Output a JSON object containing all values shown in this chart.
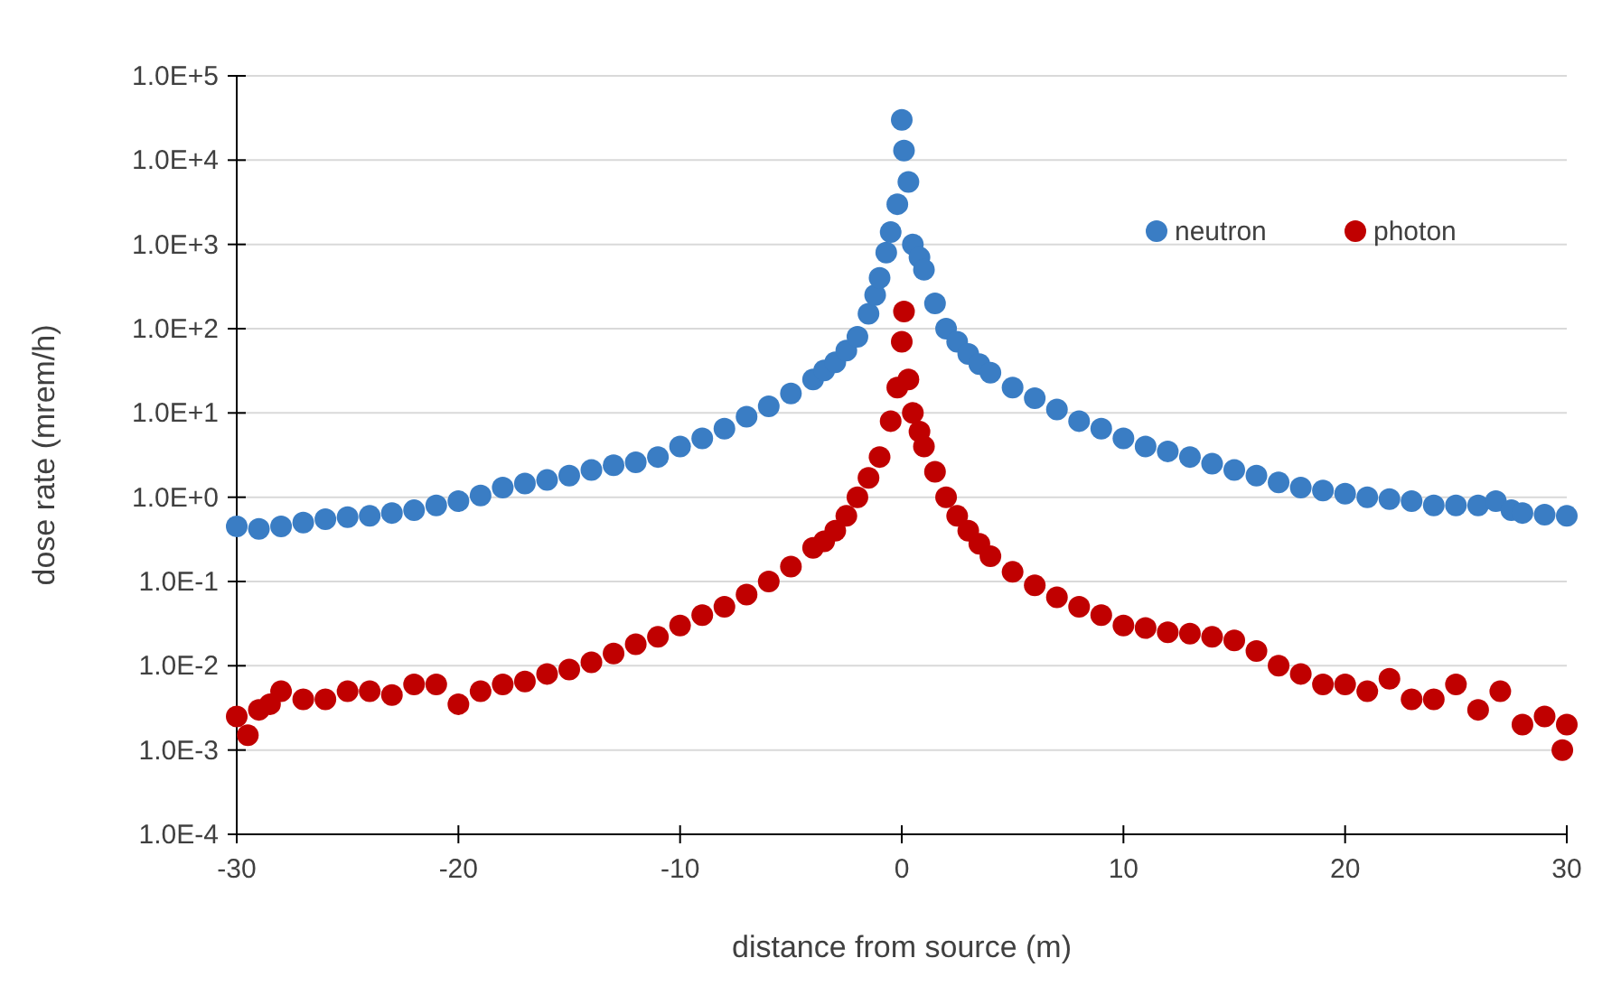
{
  "chart_data": {
    "type": "scatter",
    "xlabel": "distance from source (m)",
    "ylabel": "dose rate (mrem/h)",
    "log": "y",
    "grid": "y",
    "legend": "top right",
    "marker": "circle",
    "xlim": [
      -30,
      30
    ],
    "xticks": [
      -30,
      -20,
      -10,
      0,
      10,
      20,
      30
    ],
    "ylim": [
      0.0001,
      100000
    ],
    "yticks": [
      {
        "value": 0.0001,
        "label": "1.0E-4"
      },
      {
        "value": 0.001,
        "label": "1.0E-3"
      },
      {
        "value": 0.01,
        "label": "1.0E-2"
      },
      {
        "value": 0.1,
        "label": "1.0E-1"
      },
      {
        "value": 1,
        "label": "1.0E+0"
      },
      {
        "value": 10,
        "label": "1.0E+1"
      },
      {
        "value": 100,
        "label": "1.0E+2"
      },
      {
        "value": 1000,
        "label": "1.0E+3"
      },
      {
        "value": 10000,
        "label": "1.0E+4"
      },
      {
        "value": 100000,
        "label": "1.0E+5"
      }
    ],
    "series": [
      {
        "name": "neutron",
        "color": "#3a7dc4",
        "x": [
          -30,
          -29,
          -28,
          -27,
          -26,
          -25,
          -24,
          -23,
          -22,
          -21,
          -20,
          -19,
          -18,
          -17,
          -16,
          -15,
          -14,
          -13,
          -12,
          -11,
          -10,
          -9,
          -8,
          -7,
          -6,
          -5,
          -4,
          -3.5,
          -3,
          -2.5,
          -2,
          -1.5,
          -1.2,
          -1,
          -0.7,
          -0.5,
          -0.2,
          0,
          0.1,
          0.3,
          0.5,
          0.8,
          1,
          1.5,
          2,
          2.5,
          3,
          3.5,
          4,
          5,
          6,
          7,
          8,
          9,
          10,
          11,
          12,
          13,
          14,
          15,
          16,
          17,
          18,
          19,
          20,
          21,
          22,
          23,
          24,
          25,
          26,
          26.8,
          27.5,
          28,
          29,
          30
        ],
        "values": [
          0.45,
          0.42,
          0.45,
          0.5,
          0.55,
          0.58,
          0.6,
          0.65,
          0.7,
          0.8,
          0.9,
          1.05,
          1.3,
          1.45,
          1.6,
          1.8,
          2.1,
          2.4,
          2.6,
          3,
          4,
          5,
          6.5,
          9,
          12,
          17,
          25,
          32,
          40,
          55,
          80,
          150,
          250,
          400,
          800,
          1400,
          3000,
          30000,
          13000,
          5500,
          1000,
          700,
          500,
          200,
          100,
          70,
          50,
          38,
          30,
          20,
          15,
          11,
          8,
          6.5,
          5,
          4,
          3.5,
          3,
          2.5,
          2.1,
          1.8,
          1.5,
          1.3,
          1.2,
          1.1,
          1,
          0.95,
          0.9,
          0.8,
          0.8,
          0.8,
          0.9,
          0.7,
          0.65,
          0.62,
          0.6
        ]
      },
      {
        "name": "photon",
        "color": "#c00000",
        "x": [
          -30,
          -29.5,
          -29,
          -28.5,
          -28,
          -27,
          -26,
          -25,
          -24,
          -23,
          -22,
          -21,
          -20,
          -19,
          -18,
          -17,
          -16,
          -15,
          -14,
          -13,
          -12,
          -11,
          -10,
          -9,
          -8,
          -7,
          -6,
          -5,
          -4,
          -3.5,
          -3,
          -2.5,
          -2,
          -1.5,
          -1,
          -0.5,
          -0.2,
          0,
          0.1,
          0.3,
          0.5,
          0.8,
          1,
          1.5,
          2,
          2.5,
          3,
          3.5,
          4,
          5,
          6,
          7,
          8,
          9,
          10,
          11,
          12,
          13,
          14,
          15,
          16,
          17,
          18,
          19,
          20,
          21,
          22,
          23,
          24,
          25,
          26,
          27,
          28,
          29,
          29.8,
          30
        ],
        "values": [
          0.0025,
          0.0015,
          0.003,
          0.0035,
          0.005,
          0.004,
          0.004,
          0.005,
          0.005,
          0.0045,
          0.006,
          0.006,
          0.0035,
          0.005,
          0.006,
          0.0065,
          0.008,
          0.009,
          0.011,
          0.014,
          0.018,
          0.022,
          0.03,
          0.04,
          0.05,
          0.07,
          0.1,
          0.15,
          0.25,
          0.3,
          0.4,
          0.6,
          1,
          1.7,
          3,
          8,
          20,
          70,
          160,
          25,
          10,
          6,
          4,
          2,
          1,
          0.6,
          0.4,
          0.28,
          0.2,
          0.13,
          0.09,
          0.065,
          0.05,
          0.04,
          0.03,
          0.028,
          0.025,
          0.024,
          0.022,
          0.02,
          0.015,
          0.01,
          0.008,
          0.006,
          0.006,
          0.005,
          0.007,
          0.004,
          0.004,
          0.006,
          0.003,
          0.005,
          0.002,
          0.0025,
          0.001,
          0.002
        ]
      }
    ]
  }
}
